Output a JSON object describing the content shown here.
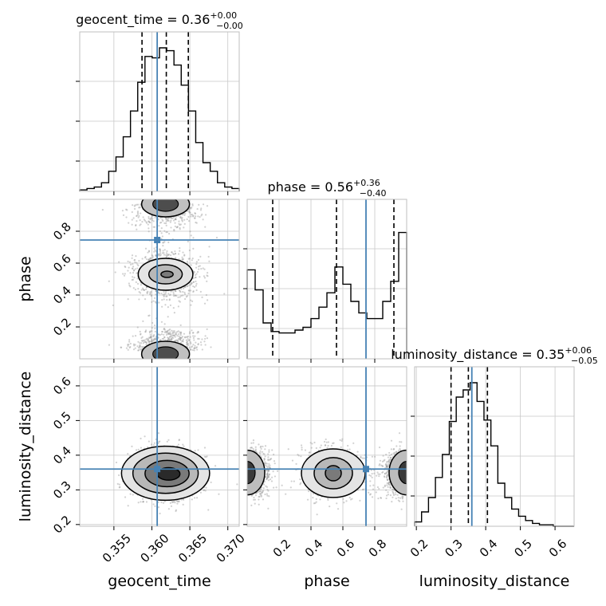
{
  "colors": {
    "truth": "#4682b4",
    "hist": "#000000",
    "grid": "#c8c8c8",
    "background": "#ffffff"
  },
  "chart_data": {
    "type": "corner",
    "grid": true,
    "parameters": [
      {
        "name": "geocent_time",
        "xlabel": "geocent_time",
        "ylabel": "",
        "title_prefix": "geocent_time = 0.36",
        "err_plus": "+0.00",
        "err_minus": "−0.00",
        "range": [
          0.3505,
          0.3715
        ],
        "ticks": [
          0.355,
          0.36,
          0.365,
          0.37
        ],
        "tick_labels": [
          "0.355",
          "0.360",
          "0.365",
          "0.370"
        ],
        "truth": 0.3607,
        "quantiles": [
          0.3587,
          0.3619,
          0.3648
        ],
        "hist": [
          0.01,
          0.02,
          0.03,
          0.06,
          0.14,
          0.24,
          0.38,
          0.56,
          0.76,
          0.94,
          0.93,
          1.0,
          0.98,
          0.88,
          0.74,
          0.56,
          0.34,
          0.2,
          0.14,
          0.06,
          0.03,
          0.02
        ]
      },
      {
        "name": "phase",
        "xlabel": "phase",
        "ylabel": "phase",
        "title_prefix": "phase = 0.56",
        "err_plus": "+0.36",
        "err_minus": "−0.40",
        "range": [
          0.0,
          1.0
        ],
        "ticks": [
          0.2,
          0.4,
          0.6,
          0.8
        ],
        "tick_labels": [
          "0.2",
          "0.4",
          "0.6",
          "0.8"
        ],
        "truth": 0.745,
        "quantiles": [
          0.16,
          0.56,
          0.92
        ],
        "hist": [
          0.62,
          0.48,
          0.25,
          0.19,
          0.18,
          0.18,
          0.2,
          0.22,
          0.28,
          0.36,
          0.46,
          0.64,
          0.52,
          0.4,
          0.32,
          0.28,
          0.28,
          0.4,
          0.54,
          0.88
        ]
      },
      {
        "name": "luminosity_distance",
        "xlabel": "luminosity_distance",
        "ylabel": "luminosity_distance",
        "title_prefix": "luminosity_distance = 0.35",
        "err_plus": "+0.06",
        "err_minus": "−0.05",
        "range": [
          0.195,
          0.655
        ],
        "ticks": [
          0.2,
          0.3,
          0.4,
          0.5,
          0.6
        ],
        "tick_labels": [
          "0.2",
          "0.3",
          "0.4",
          "0.5",
          "0.6"
        ],
        "truth": 0.36,
        "quantiles": [
          0.3,
          0.35,
          0.405
        ],
        "hist": [
          0.03,
          0.1,
          0.2,
          0.34,
          0.5,
          0.73,
          0.9,
          0.95,
          1.0,
          0.87,
          0.74,
          0.56,
          0.3,
          0.2,
          0.12,
          0.07,
          0.04,
          0.02,
          0.01,
          0.01,
          0.0,
          0.0,
          0.0
        ]
      }
    ]
  }
}
